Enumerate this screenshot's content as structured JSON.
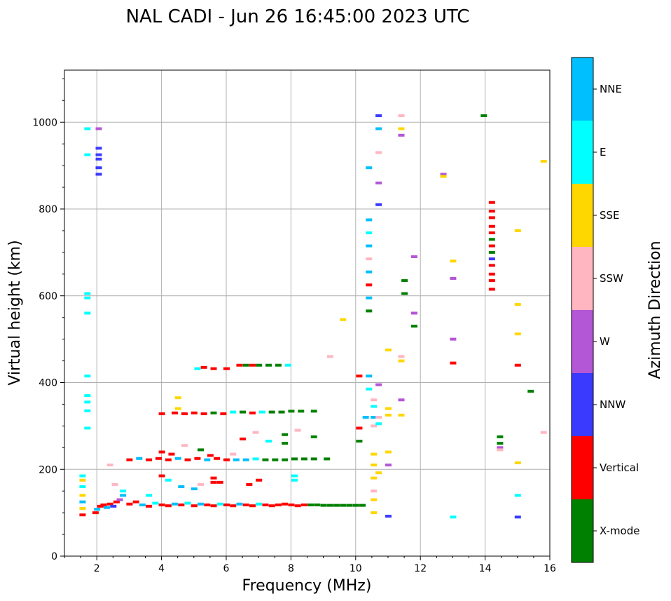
{
  "chart_data": {
    "type": "scatter",
    "title": "NAL CADI - Jun 26 16:45:00 2023 UTC",
    "xlabel": "Frequency (MHz)",
    "ylabel": "Virtual height (km)",
    "xlim": [
      1,
      16
    ],
    "ylim": [
      0,
      1120
    ],
    "xticks": [
      2,
      4,
      6,
      8,
      10,
      12,
      14,
      16
    ],
    "yticks": [
      0,
      200,
      400,
      600,
      800,
      1000
    ],
    "grid": true,
    "colorbar": {
      "title": "Azimuth Direction",
      "categories": [
        {
          "name": "X-mode",
          "color": "#008000"
        },
        {
          "name": "Vertical",
          "color": "#ff0000"
        },
        {
          "name": "NNW",
          "color": "#3a3aff"
        },
        {
          "name": "W",
          "color": "#b457d6"
        },
        {
          "name": "SSW",
          "color": "#ffb6c1"
        },
        {
          "name": "SSE",
          "color": "#ffd700"
        },
        {
          "name": "E",
          "color": "#00ffff"
        },
        {
          "name": "NNE",
          "color": "#00bfff"
        }
      ]
    },
    "points": [
      [
        1.55,
        95,
        "Vertical"
      ],
      [
        1.55,
        110,
        "SSE"
      ],
      [
        1.55,
        125,
        "NNE"
      ],
      [
        1.55,
        140,
        "SSE"
      ],
      [
        1.55,
        160,
        "E"
      ],
      [
        1.55,
        175,
        "SSE"
      ],
      [
        1.55,
        185,
        "E"
      ],
      [
        1.7,
        985,
        "E"
      ],
      [
        1.7,
        925,
        "E"
      ],
      [
        1.7,
        605,
        "E"
      ],
      [
        1.7,
        595,
        "E"
      ],
      [
        1.7,
        560,
        "E"
      ],
      [
        1.7,
        415,
        "E"
      ],
      [
        1.7,
        370,
        "E"
      ],
      [
        1.7,
        355,
        "E"
      ],
      [
        1.7,
        335,
        "E"
      ],
      [
        1.7,
        295,
        "E"
      ],
      [
        2.05,
        985,
        "W"
      ],
      [
        2.05,
        940,
        "NNW"
      ],
      [
        2.05,
        925,
        "NNW"
      ],
      [
        2.05,
        915,
        "NNW"
      ],
      [
        2.05,
        895,
        "NNW"
      ],
      [
        2.05,
        880,
        "NNW"
      ],
      [
        1.95,
        100,
        "Vertical"
      ],
      [
        2.0,
        108,
        "NNE"
      ],
      [
        2.1,
        115,
        "Vertical"
      ],
      [
        2.2,
        118,
        "Vertical"
      ],
      [
        2.3,
        112,
        "NNE"
      ],
      [
        2.4,
        120,
        "Vertical"
      ],
      [
        2.5,
        115,
        "NNW"
      ],
      [
        2.6,
        125,
        "Vertical"
      ],
      [
        2.7,
        130,
        "W"
      ],
      [
        2.8,
        140,
        "NNE"
      ],
      [
        2.4,
        210,
        "SSW"
      ],
      [
        2.55,
        165,
        "SSW"
      ],
      [
        2.8,
        150,
        "E"
      ],
      [
        3.0,
        120,
        "Vertical"
      ],
      [
        3.2,
        125,
        "Vertical"
      ],
      [
        3.4,
        118,
        "NNE"
      ],
      [
        3.6,
        115,
        "Vertical"
      ],
      [
        3.8,
        122,
        "E"
      ],
      [
        4.0,
        118,
        "Vertical"
      ],
      [
        4.2,
        116,
        "Vertical"
      ],
      [
        4.4,
        120,
        "NNE"
      ],
      [
        4.6,
        118,
        "Vertical"
      ],
      [
        4.8,
        122,
        "E"
      ],
      [
        5.0,
        116,
        "Vertical"
      ],
      [
        5.2,
        120,
        "NNE"
      ],
      [
        5.4,
        118,
        "Vertical"
      ],
      [
        5.6,
        116,
        "Vertical"
      ],
      [
        5.8,
        120,
        "E"
      ],
      [
        6.0,
        118,
        "Vertical"
      ],
      [
        6.2,
        116,
        "Vertical"
      ],
      [
        6.4,
        120,
        "NNE"
      ],
      [
        6.6,
        118,
        "Vertical"
      ],
      [
        6.8,
        116,
        "Vertical"
      ],
      [
        7.0,
        120,
        "E"
      ],
      [
        7.2,
        118,
        "Vertical"
      ],
      [
        7.4,
        116,
        "Vertical"
      ],
      [
        7.6,
        118,
        "Vertical"
      ],
      [
        7.8,
        120,
        "Vertical"
      ],
      [
        8.0,
        118,
        "Vertical"
      ],
      [
        8.2,
        116,
        "Vertical"
      ],
      [
        8.4,
        118,
        "Vertical"
      ],
      [
        8.6,
        118,
        "X-mode"
      ],
      [
        8.8,
        118,
        "X-mode"
      ],
      [
        9.0,
        117,
        "X-mode"
      ],
      [
        9.2,
        117,
        "X-mode"
      ],
      [
        9.4,
        117,
        "X-mode"
      ],
      [
        9.6,
        117,
        "X-mode"
      ],
      [
        9.8,
        117,
        "X-mode"
      ],
      [
        10.0,
        117,
        "X-mode"
      ],
      [
        10.2,
        117,
        "X-mode"
      ],
      [
        3.6,
        140,
        "E"
      ],
      [
        4.2,
        175,
        "E"
      ],
      [
        4.6,
        160,
        "NNE"
      ],
      [
        5.0,
        155,
        "NNE"
      ],
      [
        5.2,
        165,
        "SSW"
      ],
      [
        5.8,
        170,
        "Vertical"
      ],
      [
        6.7,
        165,
        "Vertical"
      ],
      [
        7.0,
        175,
        "Vertical"
      ],
      [
        4.0,
        185,
        "Vertical"
      ],
      [
        5.6,
        180,
        "Vertical"
      ],
      [
        5.6,
        170,
        "Vertical"
      ],
      [
        3.0,
        222,
        "Vertical"
      ],
      [
        3.3,
        225,
        "NNE"
      ],
      [
        3.6,
        222,
        "Vertical"
      ],
      [
        3.9,
        225,
        "Vertical"
      ],
      [
        4.2,
        222,
        "Vertical"
      ],
      [
        4.5,
        225,
        "NNE"
      ],
      [
        4.8,
        222,
        "Vertical"
      ],
      [
        5.1,
        225,
        "Vertical"
      ],
      [
        5.4,
        222,
        "NNE"
      ],
      [
        5.7,
        225,
        "Vertical"
      ],
      [
        6.0,
        222,
        "Vertical"
      ],
      [
        6.3,
        222,
        "NNE"
      ],
      [
        6.6,
        222,
        "NNE"
      ],
      [
        6.9,
        224,
        "E"
      ],
      [
        7.2,
        222,
        "X-mode"
      ],
      [
        7.5,
        222,
        "X-mode"
      ],
      [
        7.8,
        222,
        "X-mode"
      ],
      [
        8.1,
        224,
        "X-mode"
      ],
      [
        8.4,
        224,
        "X-mode"
      ],
      [
        8.7,
        224,
        "X-mode"
      ],
      [
        9.1,
        224,
        "X-mode"
      ],
      [
        4.0,
        240,
        "Vertical"
      ],
      [
        4.3,
        235,
        "Vertical"
      ],
      [
        4.7,
        255,
        "SSW"
      ],
      [
        5.2,
        245,
        "X-mode"
      ],
      [
        5.5,
        232,
        "Vertical"
      ],
      [
        6.2,
        235,
        "SSW"
      ],
      [
        6.5,
        270,
        "Vertical"
      ],
      [
        6.9,
        285,
        "SSW"
      ],
      [
        7.3,
        265,
        "E"
      ],
      [
        7.8,
        280,
        "X-mode"
      ],
      [
        7.8,
        260,
        "X-mode"
      ],
      [
        8.2,
        290,
        "SSW"
      ],
      [
        8.7,
        275,
        "X-mode"
      ],
      [
        4.0,
        328,
        "Vertical"
      ],
      [
        4.4,
        330,
        "Vertical"
      ],
      [
        4.7,
        328,
        "Vertical"
      ],
      [
        5.0,
        330,
        "Vertical"
      ],
      [
        5.3,
        328,
        "Vertical"
      ],
      [
        5.6,
        330,
        "X-mode"
      ],
      [
        5.9,
        328,
        "Vertical"
      ],
      [
        6.2,
        332,
        "E"
      ],
      [
        6.5,
        332,
        "X-mode"
      ],
      [
        6.8,
        330,
        "Vertical"
      ],
      [
        7.1,
        332,
        "E"
      ],
      [
        7.4,
        332,
        "X-mode"
      ],
      [
        7.7,
        332,
        "X-mode"
      ],
      [
        8.0,
        334,
        "X-mode"
      ],
      [
        8.3,
        334,
        "X-mode"
      ],
      [
        8.7,
        334,
        "X-mode"
      ],
      [
        4.5,
        365,
        "SSE"
      ],
      [
        4.5,
        340,
        "SSE"
      ],
      [
        5.1,
        432,
        "E"
      ],
      [
        5.3,
        435,
        "Vertical"
      ],
      [
        5.6,
        432,
        "Vertical"
      ],
      [
        6.0,
        432,
        "Vertical"
      ],
      [
        6.4,
        440,
        "Vertical"
      ],
      [
        6.6,
        440,
        "X-mode"
      ],
      [
        6.8,
        440,
        "Vertical"
      ],
      [
        7.0,
        440,
        "X-mode"
      ],
      [
        7.3,
        440,
        "X-mode"
      ],
      [
        7.6,
        440,
        "X-mode"
      ],
      [
        7.9,
        440,
        "E"
      ],
      [
        10.1,
        415,
        "Vertical"
      ],
      [
        10.4,
        415,
        "NNE"
      ],
      [
        10.4,
        385,
        "E"
      ],
      [
        10.1,
        295,
        "Vertical"
      ],
      [
        10.1,
        265,
        "X-mode"
      ],
      [
        10.3,
        320,
        "NNE"
      ],
      [
        10.7,
        395,
        "W"
      ],
      [
        10.55,
        100,
        "SSE"
      ],
      [
        10.55,
        130,
        "SSE"
      ],
      [
        10.55,
        150,
        "SSW"
      ],
      [
        10.55,
        180,
        "SSE"
      ],
      [
        10.55,
        210,
        "SSE"
      ],
      [
        10.55,
        235,
        "SSE"
      ],
      [
        10.55,
        300,
        "SSW"
      ],
      [
        10.55,
        320,
        "NNE"
      ],
      [
        10.55,
        345,
        "E"
      ],
      [
        10.55,
        360,
        "SSW"
      ],
      [
        10.7,
        305,
        "E"
      ],
      [
        10.7,
        320,
        "SSW"
      ],
      [
        10.4,
        895,
        "NNE"
      ],
      [
        10.4,
        775,
        "NNE"
      ],
      [
        10.4,
        745,
        "E"
      ],
      [
        10.4,
        715,
        "NNE"
      ],
      [
        10.4,
        685,
        "SSW"
      ],
      [
        10.4,
        655,
        "NNE"
      ],
      [
        10.4,
        625,
        "Vertical"
      ],
      [
        10.4,
        595,
        "NNE"
      ],
      [
        10.4,
        565,
        "X-mode"
      ],
      [
        10.7,
        1015,
        "NNW"
      ],
      [
        10.7,
        985,
        "NNE"
      ],
      [
        10.7,
        930,
        "SSW"
      ],
      [
        10.7,
        860,
        "W"
      ],
      [
        10.7,
        810,
        "NNW"
      ],
      [
        11.4,
        1015,
        "SSW"
      ],
      [
        11.4,
        985,
        "SSE"
      ],
      [
        11.4,
        970,
        "W"
      ],
      [
        11.4,
        460,
        "SSW"
      ],
      [
        11.4,
        450,
        "SSE"
      ],
      [
        11.4,
        360,
        "W"
      ],
      [
        11.4,
        325,
        "SSE"
      ],
      [
        11.0,
        475,
        "SSE"
      ],
      [
        11.0,
        340,
        "SSE"
      ],
      [
        11.0,
        325,
        "SSE"
      ],
      [
        11.0,
        240,
        "SSE"
      ],
      [
        11.0,
        210,
        "W"
      ],
      [
        11.0,
        92,
        "NNW"
      ],
      [
        10.7,
        192,
        "SSE"
      ],
      [
        11.5,
        635,
        "X-mode"
      ],
      [
        11.5,
        605,
        "X-mode"
      ],
      [
        11.8,
        530,
        "X-mode"
      ],
      [
        11.8,
        560,
        "W"
      ],
      [
        11.8,
        690,
        "W"
      ],
      [
        9.2,
        460,
        "SSW"
      ],
      [
        9.6,
        545,
        "SSE"
      ],
      [
        8.1,
        185,
        "E"
      ],
      [
        8.1,
        175,
        "E"
      ],
      [
        12.7,
        880,
        "W"
      ],
      [
        12.7,
        875,
        "SSE"
      ],
      [
        13.0,
        680,
        "SSE"
      ],
      [
        13.0,
        640,
        "W"
      ],
      [
        13.0,
        500,
        "W"
      ],
      [
        13.0,
        445,
        "Vertical"
      ],
      [
        13.0,
        90,
        "E"
      ],
      [
        13.95,
        1015,
        "X-mode"
      ],
      [
        14.2,
        815,
        "Vertical"
      ],
      [
        14.2,
        795,
        "Vertical"
      ],
      [
        14.2,
        780,
        "Vertical"
      ],
      [
        14.2,
        760,
        "Vertical"
      ],
      [
        14.2,
        745,
        "Vertical"
      ],
      [
        14.2,
        730,
        "X-mode"
      ],
      [
        14.2,
        715,
        "Vertical"
      ],
      [
        14.2,
        700,
        "X-mode"
      ],
      [
        14.2,
        685,
        "NNW"
      ],
      [
        14.2,
        670,
        "Vertical"
      ],
      [
        14.2,
        650,
        "Vertical"
      ],
      [
        14.2,
        635,
        "Vertical"
      ],
      [
        14.2,
        615,
        "Vertical"
      ],
      [
        14.45,
        275,
        "X-mode"
      ],
      [
        14.45,
        260,
        "X-mode"
      ],
      [
        14.45,
        250,
        "W"
      ],
      [
        14.45,
        245,
        "SSW"
      ],
      [
        15.0,
        750,
        "SSE"
      ],
      [
        15.0,
        580,
        "SSE"
      ],
      [
        15.0,
        512,
        "SSE"
      ],
      [
        15.0,
        440,
        "Vertical"
      ],
      [
        15.0,
        215,
        "SSE"
      ],
      [
        15.0,
        140,
        "E"
      ],
      [
        15.0,
        90,
        "NNW"
      ],
      [
        15.4,
        380,
        "X-mode"
      ],
      [
        15.8,
        910,
        "SSE"
      ],
      [
        15.8,
        285,
        "SSW"
      ]
    ]
  }
}
